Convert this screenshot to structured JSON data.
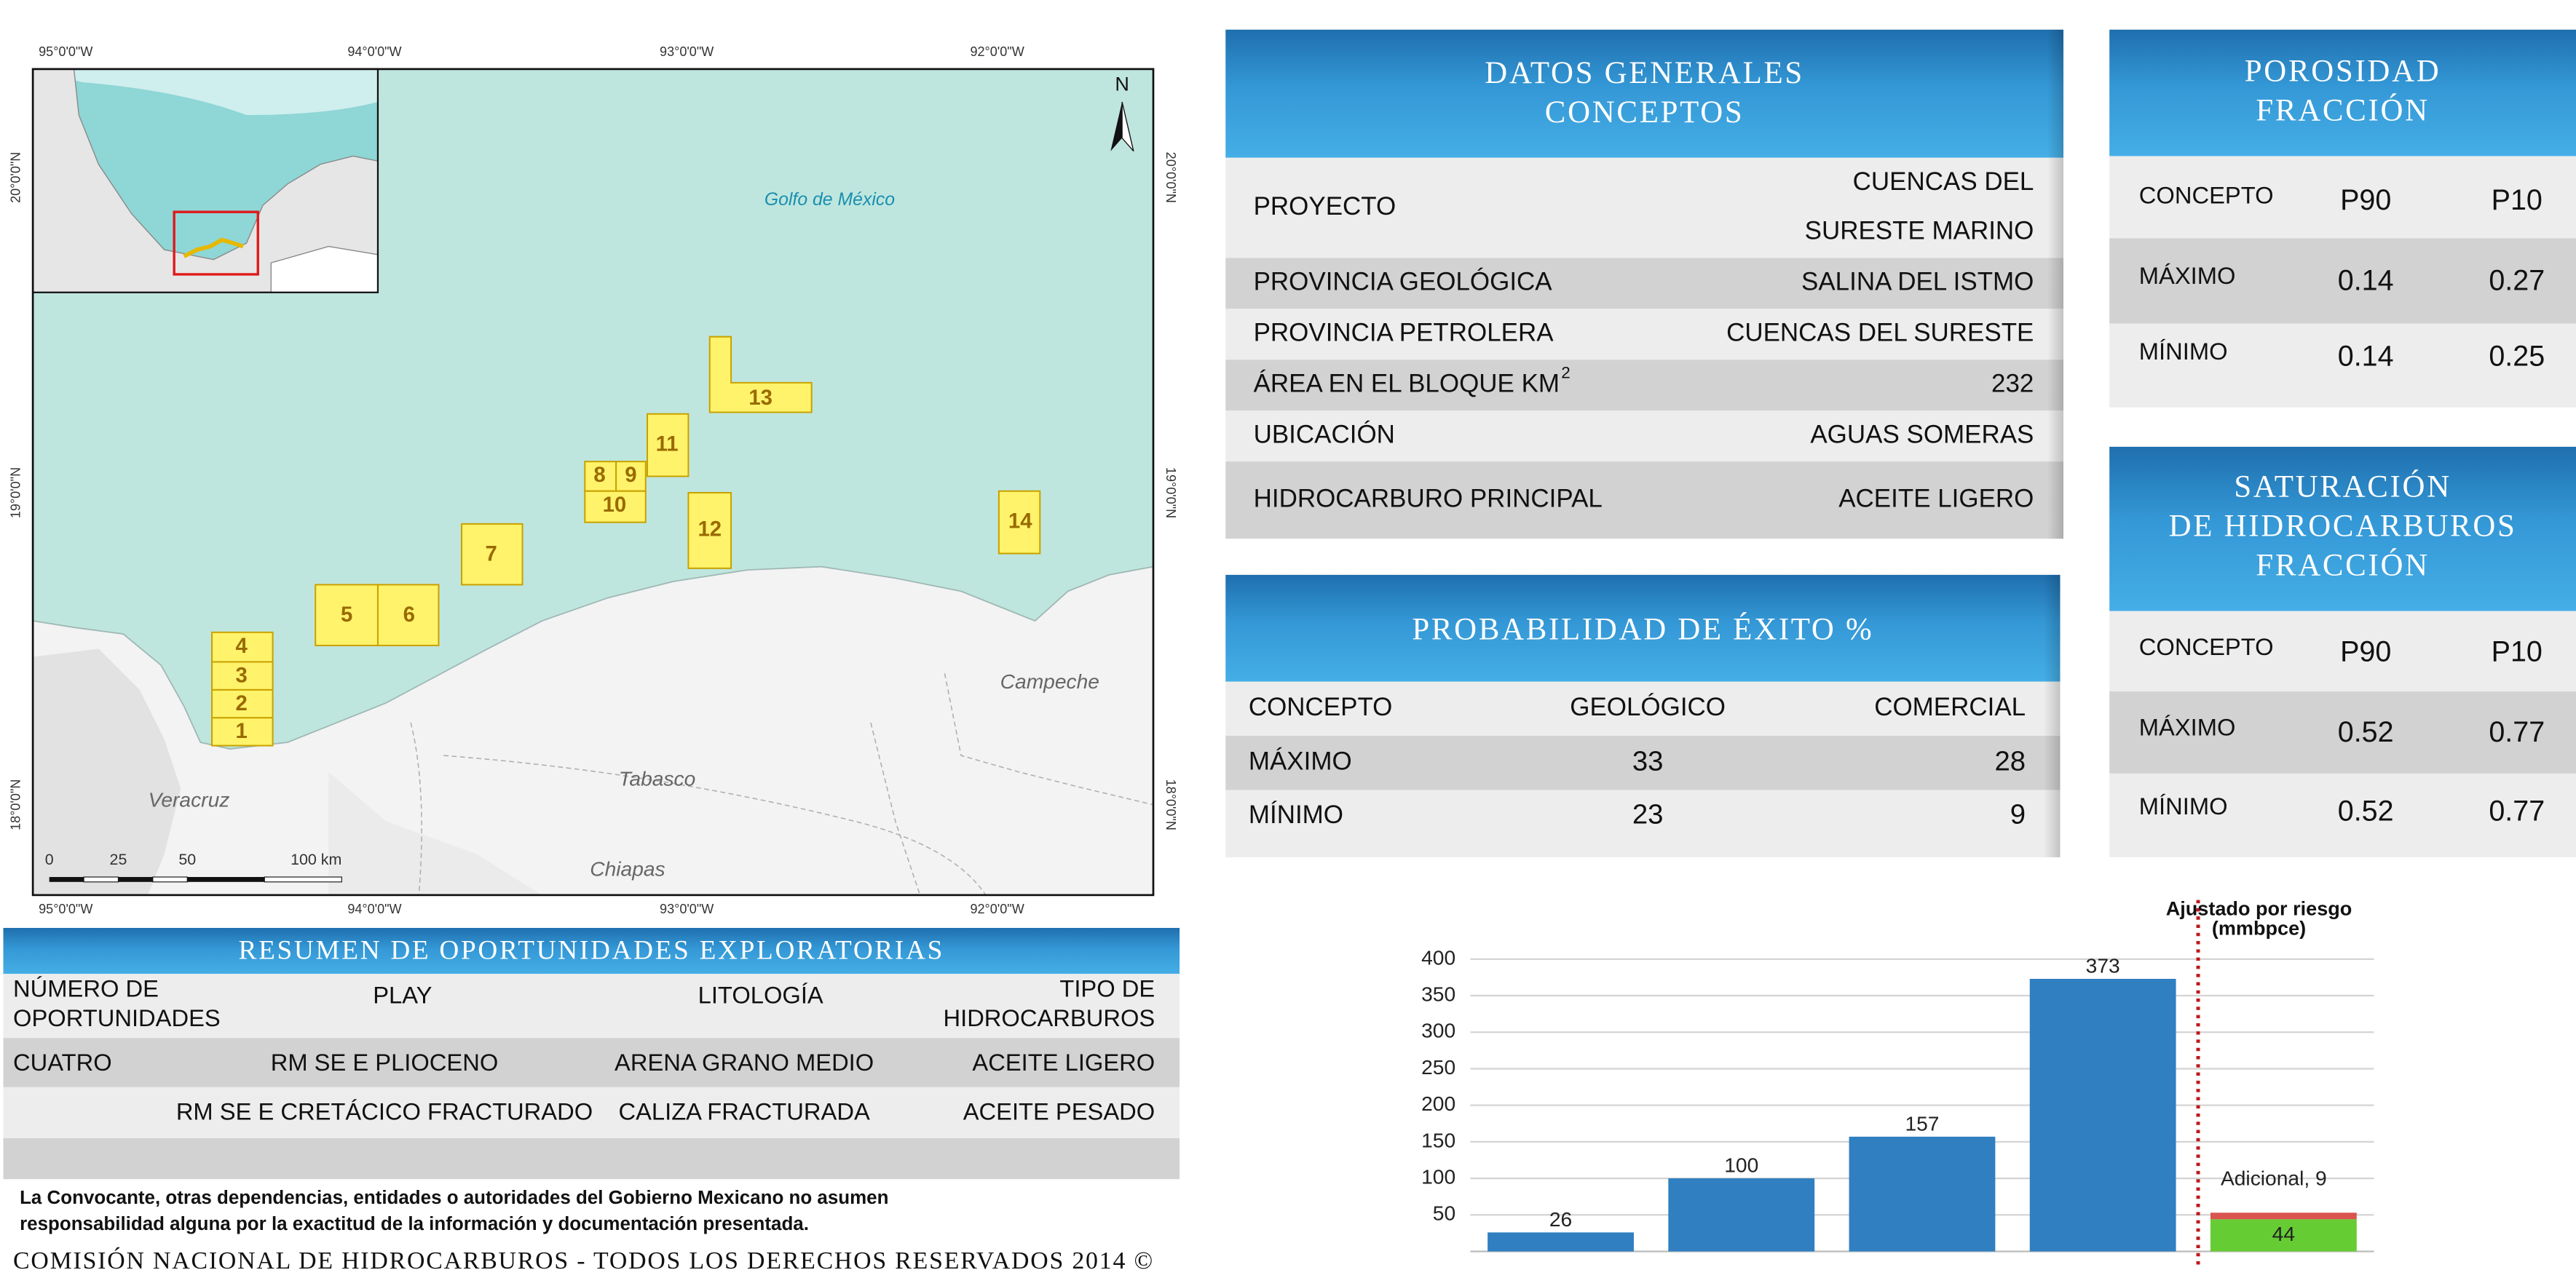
{
  "map": {
    "longitudes": [
      "95°0'0\"W",
      "94°0'0\"W",
      "93°0'0\"W",
      "92°0'0\"W"
    ],
    "latitudes": [
      "20°0'0\"N",
      "19°0'0\"N",
      "18°0'0\"N"
    ],
    "north": "N",
    "places": [
      "Golfo de México",
      "Campeche",
      "Tabasco",
      "Veracruz",
      "Chiapas"
    ],
    "scale": [
      "0",
      "25",
      "50",
      "100 km"
    ],
    "blocks": [
      "1",
      "2",
      "3",
      "4",
      "5",
      "6",
      "7",
      "8",
      "9",
      "10",
      "11",
      "12",
      "13",
      "14"
    ]
  },
  "datos_generales": {
    "title": [
      "DATOS GENERALES",
      "CONCEPTOS"
    ],
    "rows": [
      {
        "label": "PROYECTO",
        "value": [
          "CUENCAS DEL",
          "SURESTE MARINO"
        ]
      },
      {
        "label": "PROVINCIA GEOLÓGICA",
        "value": "SALINA DEL ISTMO"
      },
      {
        "label": "PROVINCIA PETROLERA",
        "value": "CUENCAS DEL SURESTE"
      },
      {
        "label": "ÁREA EN EL BLOQUE KM",
        "sup": "2",
        "value": 232
      },
      {
        "label": "UBICACIÓN",
        "value": "AGUAS SOMERAS"
      },
      {
        "label": "HIDROCARBURO PRINCIPAL",
        "value": "ACEITE LIGERO"
      }
    ]
  },
  "probabilidad": {
    "title": "PROBABILIDAD DE ÉXITO %",
    "header": [
      "CONCEPTO",
      "GEOLÓGICO",
      "COMERCIAL"
    ],
    "rows": [
      [
        "MÁXIMO",
        33,
        28
      ],
      [
        "MÍNIMO",
        23,
        9
      ]
    ]
  },
  "porosidad": {
    "title": [
      "POROSIDAD",
      "FRACCIÓN"
    ],
    "header": [
      "CONCEPTO",
      "P90",
      "P10"
    ],
    "rows": [
      [
        "MÁXIMO",
        0.14,
        0.27
      ],
      [
        "MÍNIMO",
        0.14,
        0.25
      ]
    ]
  },
  "saturacion": {
    "title": [
      "SATURACIÓN",
      "DE HIDROCARBUROS",
      "FRACCIÓN"
    ],
    "header": [
      "CONCEPTO",
      "P90",
      "P10"
    ],
    "rows": [
      [
        "MÁXIMO",
        0.52,
        0.77
      ],
      [
        "MÍNIMO",
        0.52,
        0.77
      ]
    ]
  },
  "resumen": {
    "title": "RESUMEN DE OPORTUNIDADES EXPLORATORIAS",
    "header": [
      [
        "NÚMERO DE",
        "OPORTUNIDADES"
      ],
      [
        "PLAY"
      ],
      [
        "LITOLOGÍA"
      ],
      [
        "TIPO DE",
        "HIDROCARBUROS"
      ]
    ],
    "rows": [
      [
        "CUATRO",
        "RM SE E PLIOCENO",
        "ARENA GRANO MEDIO",
        "ACEITE LIGERO"
      ],
      [
        null,
        "RM SE E CRETÁCICO FRACTURADO",
        "CALIZA FRACTURADA",
        "ACEITE PESADO"
      ]
    ]
  },
  "disclaimer": [
    "La Convocante, otras dependencias, entidades o autoridades del Gobierno Mexicano no asumen",
    "responsabilidad alguna por la exactitud de la información y documentación presentada."
  ],
  "footer": "COMISIÓN NACIONAL DE HIDROCARBUROS - TODOS LOS DERECHOS RESERVADOS 2014 ©",
  "chart_data": {
    "type": "bar",
    "title": "Ajustado por riesgo",
    "subtitle": "(mmbpce)",
    "categories": [
      null,
      null,
      null,
      null,
      null
    ],
    "series": [
      {
        "colors": [
          "#2f7fc1",
          "#2f7fc1",
          "#2f7fc1",
          "#2f7fc1",
          "#66cc33"
        ],
        "values": [
          26,
          100,
          157,
          373,
          44
        ]
      },
      {
        "color": "#d9534f",
        "values": [
          null,
          null,
          null,
          null,
          9
        ],
        "value_labels": [
          null,
          null,
          null,
          null,
          "Adicional, 9"
        ]
      }
    ],
    "ylim": [
      0,
      400
    ],
    "yticks": [
      50,
      100,
      150,
      200,
      250,
      300,
      350,
      400
    ],
    "grid": true
  }
}
